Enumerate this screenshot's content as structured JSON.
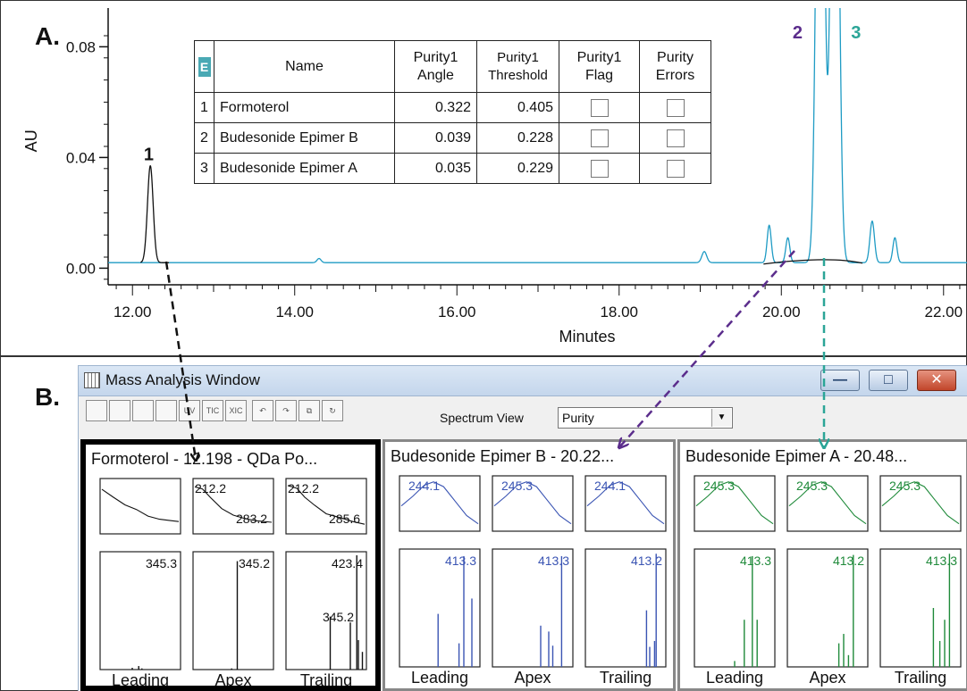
{
  "panel_letters": {
    "a": "A.",
    "b": "B."
  },
  "chart_data": {
    "type": "line",
    "xlabel": "Minutes",
    "ylabel": "AU",
    "xlim": [
      11.7,
      22.3
    ],
    "ylim": [
      -0.006,
      0.094
    ],
    "x_ticks": [
      {
        "value": 12,
        "label": "12.00"
      },
      {
        "value": 14,
        "label": "14.00"
      },
      {
        "value": 16,
        "label": "16.00"
      },
      {
        "value": 18,
        "label": "18.00"
      },
      {
        "value": 20,
        "label": "20.00"
      },
      {
        "value": 22,
        "label": "22.00"
      }
    ],
    "y_ticks": [
      {
        "value": 0,
        "label": "0.00"
      },
      {
        "value": 0.04,
        "label": "0.04"
      },
      {
        "value": 0.08,
        "label": "0.08"
      }
    ],
    "baseline": 0.002,
    "series": [
      {
        "color": "#1e9bc4",
        "peaks": [
          {
            "x": 14.3,
            "h": 0.0015,
            "w": 0.025
          },
          {
            "x": 19.05,
            "h": 0.004,
            "w": 0.03
          },
          {
            "x": 19.85,
            "h": 0.0135,
            "w": 0.025
          },
          {
            "x": 20.08,
            "h": 0.009,
            "w": 0.025
          },
          {
            "x": 20.48,
            "h": 0.25,
            "w": 0.045
          },
          {
            "x": 20.66,
            "h": 0.25,
            "w": 0.045
          },
          {
            "x": 21.12,
            "h": 0.015,
            "w": 0.028
          },
          {
            "x": 21.4,
            "h": 0.009,
            "w": 0.025
          }
        ]
      },
      {
        "color": "#111111",
        "peaks": [
          {
            "x": 12.22,
            "h": 0.035,
            "w": 0.035
          }
        ]
      }
    ],
    "peak_labels": [
      {
        "label": "1",
        "x": 12.2,
        "y": 0.039,
        "color": "#111111"
      },
      {
        "label": "2",
        "x": 20.2,
        "y": 0.083,
        "color": "#5b2d8c"
      },
      {
        "label": "3",
        "x": 20.92,
        "y": 0.083,
        "color": "#2ba597"
      }
    ]
  },
  "purity_table": {
    "corner_icon": "E",
    "headers": [
      "Name",
      "Purity1 Angle",
      "Purity1 Threshold",
      "Purity1 Flag",
      "Purity Errors"
    ],
    "rows": [
      {
        "no": "1",
        "name": "Formoterol",
        "angle": "0.322",
        "threshold": "0.405"
      },
      {
        "no": "2",
        "name": "Budesonide Epimer B",
        "angle": "0.039",
        "threshold": "0.228"
      },
      {
        "no": "3",
        "name": "Budesonide Epimer A",
        "angle": "0.035",
        "threshold": "0.229"
      }
    ]
  },
  "mass_window": {
    "title": "Mass Analysis Window",
    "minimize": "—",
    "maximize": "□",
    "close": "✕",
    "spectrum_view_label": "Spectrum View",
    "spectrum_view_value": "Purity",
    "toolbar_buttons": [
      "",
      "",
      "",
      "",
      "UV",
      "TIC",
      "XIC",
      "",
      "",
      "",
      ""
    ]
  },
  "spectrum_panels": [
    {
      "title": "Formoterol - 12.198 - QDa Po...",
      "color": "#111111",
      "uv_labels": [
        [],
        [
          "212.2",
          "283.2"
        ],
        [
          "212.2",
          "285.6"
        ]
      ],
      "ms_labels": [
        [
          "345.3"
        ],
        [
          "345.2"
        ],
        [
          "423.4",
          "345.2"
        ]
      ],
      "bottom_labels": [
        "Leading",
        "Apex",
        "Trailing"
      ]
    },
    {
      "title": "Budesonide Epimer B - 20.22...",
      "color": "#3a54b3",
      "uv_labels": [
        [
          "244.1"
        ],
        [
          "245.3"
        ],
        [
          "244.1"
        ]
      ],
      "ms_labels": [
        [
          "413.3"
        ],
        [
          "413.3"
        ],
        [
          "413.2"
        ]
      ],
      "bottom_labels": [
        "Leading",
        "Apex",
        "Trailing"
      ]
    },
    {
      "title": "Budesonide Epimer A - 20.48...",
      "color": "#1f8a3a",
      "uv_labels": [
        [
          "245.3"
        ],
        [
          "245.3"
        ],
        [
          "245.3"
        ]
      ],
      "ms_labels": [
        [
          "413.3"
        ],
        [
          "413.2"
        ],
        [
          "413.3"
        ]
      ],
      "bottom_labels": [
        "Leading",
        "Apex",
        "Trailing"
      ]
    }
  ]
}
